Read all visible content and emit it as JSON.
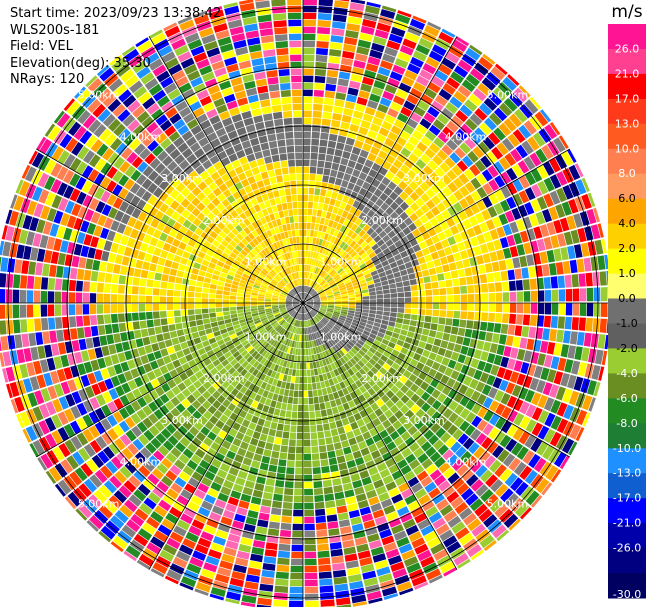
{
  "meta": {
    "start_time": "Start time: 2023/09/23 13:38:42",
    "instrument": "WLS200s-181",
    "field": "Field: VEL",
    "elevation": "Elevation(deg): 35.30",
    "nrays": "NRays: 120"
  },
  "nrays": 120,
  "range_rings": [
    "1.00km",
    "2.00km",
    "3.00km",
    "4.00km",
    "5.00km"
  ],
  "colorbar": {
    "unit": "m/s",
    "ticks": [
      "26.0",
      "21.0",
      "17.0",
      "13.0",
      "10.0",
      "8.0",
      "6.0",
      "4.0",
      "2.0",
      "1.0",
      "0.0",
      "-1.0",
      "-2.0",
      "-4.0",
      "-6.0",
      "-8.0",
      "-10.0",
      "-13.0",
      "-17.0",
      "-21.0",
      "-26.0",
      "-30.0"
    ],
    "colors": [
      "#ff1493",
      "#ff3f8f",
      "#ff0000",
      "#ff3a1a",
      "#ff5a20",
      "#ff7f50",
      "#ff9a60",
      "#ffa500",
      "#ffd000",
      "#ffff00",
      "#ffff70",
      "#707070",
      "#606060",
      "#9acd32",
      "#6b8e23",
      "#228b22",
      "#1e7e34",
      "#1e90ff",
      "#0f5fd0",
      "#0000ff",
      "#0000aa",
      "#000080",
      "#000060"
    ]
  }
}
